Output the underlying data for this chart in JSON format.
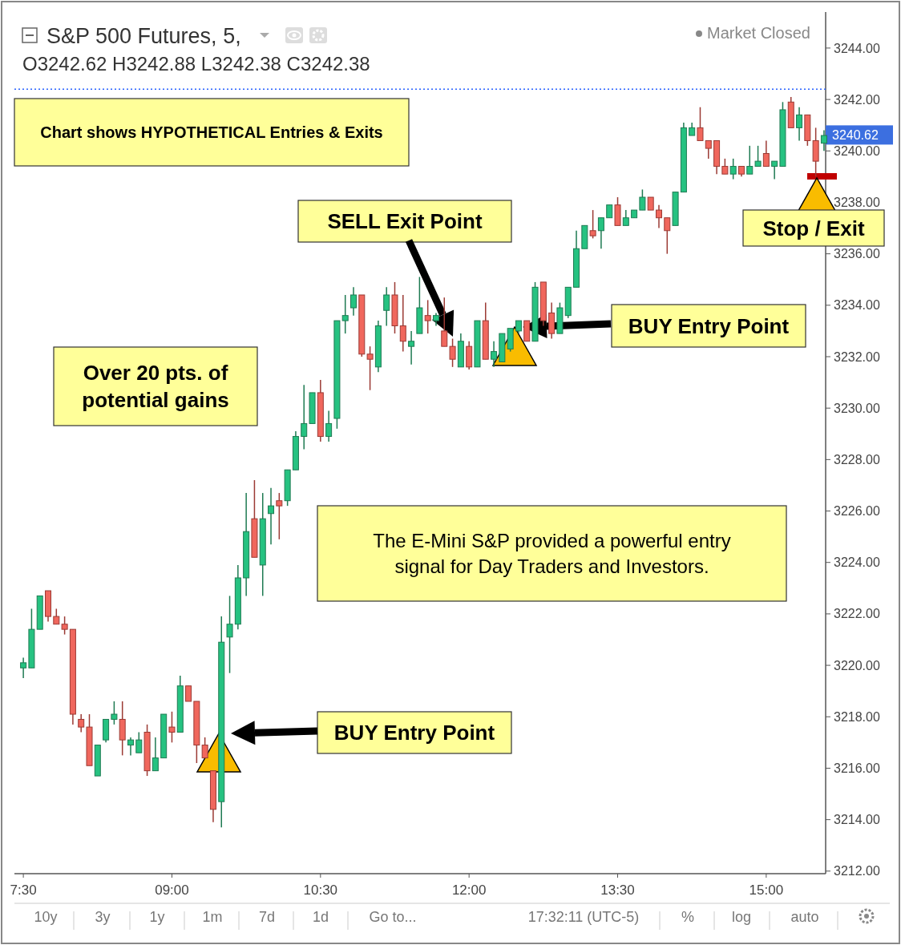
{
  "chart_data": {
    "type": "candlestick",
    "title": "S&P 500 Futures, 5,",
    "subtitle": "O3242.62 H3242.88 L3242.38 C3242.38",
    "x": [
      7.5,
      7.5833,
      7.6667,
      7.75,
      7.8333,
      7.9167,
      8,
      8.0833,
      8.1667,
      8.25,
      8.3333,
      8.4167,
      8.5,
      8.5833,
      8.6667,
      8.75,
      8.8333,
      8.9167,
      9,
      9.0833,
      9.1667,
      9.25,
      9.3333,
      9.4167,
      9.5,
      9.5833,
      9.6667,
      9.75,
      9.8333,
      9.9167,
      10,
      10.0833,
      10.1667,
      10.25,
      10.3333,
      10.4167,
      10.5,
      10.5833,
      10.6667,
      10.75,
      10.8333,
      10.9167,
      11,
      11.0833,
      11.1667,
      11.25,
      11.3333,
      11.4167,
      11.5,
      11.5833,
      11.6667,
      11.75,
      11.8333,
      11.9167,
      12,
      12.0833,
      12.1667,
      12.25,
      12.3333,
      12.4167,
      12.5,
      12.5833,
      12.6667,
      12.75,
      12.8333,
      12.9167,
      13,
      13.0833,
      13.1667,
      13.25,
      13.3333,
      13.4167,
      13.5,
      13.5833,
      13.6667,
      13.75,
      13.8333,
      13.9167,
      14,
      14.0833,
      14.1667,
      14.25,
      14.3333,
      14.4167,
      14.5,
      14.5833,
      14.6667,
      14.75,
      14.8333,
      14.9167,
      15,
      15.0833,
      15.1667,
      15.25,
      15.3333,
      15.4167,
      15.5,
      15.5833
    ],
    "ohlc": [
      [
        3219.9,
        3220.3,
        3219.5,
        3220.1
      ],
      [
        3219.9,
        3222.2,
        3219.9,
        3221.4
      ],
      [
        3221.4,
        3222.7,
        3221.4,
        3222.7
      ],
      [
        3222.9,
        3222.9,
        3221.7,
        3221.9
      ],
      [
        3221.9,
        3222.2,
        3221.6,
        3221.6
      ],
      [
        3221.6,
        3221.9,
        3221.2,
        3221.4
      ],
      [
        3221.4,
        3221.4,
        3217.7,
        3218.1
      ],
      [
        3217.9,
        3218.1,
        3217.4,
        3217.6
      ],
      [
        3217.6,
        3218.1,
        3216.1,
        3216.1
      ],
      [
        3215.7,
        3216.9,
        3215.7,
        3216.9
      ],
      [
        3217.1,
        3217.9,
        3217.0,
        3217.9
      ],
      [
        3217.9,
        3218.6,
        3217.7,
        3218.1
      ],
      [
        3217.9,
        3218.6,
        3216.5,
        3217.1
      ],
      [
        3216.9,
        3217.2,
        3216.5,
        3217.1
      ],
      [
        3216.6,
        3217.4,
        3216.6,
        3217.1
      ],
      [
        3217.4,
        3217.7,
        3215.7,
        3215.9
      ],
      [
        3215.9,
        3217.2,
        3215.9,
        3216.4
      ],
      [
        3216.4,
        3218.1,
        3216.4,
        3218.1
      ],
      [
        3217.6,
        3218.2,
        3217.0,
        3217.4
      ],
      [
        3217.4,
        3219.6,
        3217.4,
        3219.2
      ],
      [
        3219.2,
        3219.2,
        3218.6,
        3218.6
      ],
      [
        3218.6,
        3218.6,
        3216.2,
        3216.9
      ],
      [
        3216.9,
        3217.2,
        3216.4,
        3216.4
      ],
      [
        3215.9,
        3215.9,
        3213.9,
        3214.4
      ],
      [
        3214.7,
        3221.9,
        3213.7,
        3220.9
      ],
      [
        3221.1,
        3222.7,
        3219.7,
        3221.6
      ],
      [
        3221.6,
        3223.9,
        3221.4,
        3223.4
      ],
      [
        3223.4,
        3226.7,
        3222.7,
        3225.2
      ],
      [
        3225.7,
        3227.2,
        3224.2,
        3224.2
      ],
      [
        3223.9,
        3226.7,
        3222.7,
        3225.7
      ],
      [
        3225.9,
        3226.9,
        3224.7,
        3226.2
      ],
      [
        3226.4,
        3226.7,
        3224.9,
        3226.2
      ],
      [
        3226.4,
        3227.6,
        3226.2,
        3227.6
      ],
      [
        3227.6,
        3229.1,
        3227.6,
        3228.9
      ],
      [
        3228.9,
        3230.9,
        3228.4,
        3229.4
      ],
      [
        3229.4,
        3230.6,
        3229.4,
        3230.6
      ],
      [
        3230.6,
        3231.1,
        3228.7,
        3228.9
      ],
      [
        3228.9,
        3229.9,
        3228.7,
        3229.4
      ],
      [
        3229.6,
        3233.4,
        3229.2,
        3233.4
      ],
      [
        3233.4,
        3234.4,
        3232.9,
        3233.6
      ],
      [
        3233.9,
        3234.7,
        3233.6,
        3234.4
      ],
      [
        3234.4,
        3234.4,
        3232.0,
        3232.1
      ],
      [
        3232.1,
        3232.4,
        3230.7,
        3231.9
      ],
      [
        3231.6,
        3233.4,
        3231.4,
        3233.2
      ],
      [
        3233.8,
        3234.7,
        3233.2,
        3234.4
      ],
      [
        3234.4,
        3234.9,
        3232.9,
        3233.2
      ],
      [
        3233.2,
        3234.4,
        3232.2,
        3232.6
      ],
      [
        3232.4,
        3233.0,
        3231.7,
        3232.6
      ],
      [
        3232.9,
        3235.1,
        3232.9,
        3233.9
      ],
      [
        3233.6,
        3234.2,
        3232.9,
        3233.4
      ],
      [
        3233.4,
        3233.7,
        3233.2,
        3233.6
      ],
      [
        3233.0,
        3234.3,
        3232.4,
        3232.4
      ],
      [
        3232.4,
        3232.7,
        3231.6,
        3231.9
      ],
      [
        3231.6,
        3232.9,
        3231.6,
        3232.6
      ],
      [
        3232.4,
        3232.6,
        3231.5,
        3231.6
      ],
      [
        3231.6,
        3233.4,
        3231.6,
        3233.4
      ],
      [
        3233.4,
        3234.1,
        3231.9,
        3231.9
      ],
      [
        3231.9,
        3232.6,
        3231.6,
        3232.2
      ],
      [
        3231.8,
        3232.9,
        3231.8,
        3232.9
      ],
      [
        3232.3,
        3233.1,
        3232.2,
        3233.1
      ],
      [
        3233.0,
        3233.4,
        3232.9,
        3233.4
      ],
      [
        3233.4,
        3233.4,
        3232.6,
        3232.6
      ],
      [
        3232.6,
        3234.9,
        3232.6,
        3234.7
      ],
      [
        3234.9,
        3234.9,
        3233.2,
        3233.4
      ],
      [
        3233.7,
        3234.1,
        3232.7,
        3232.9
      ],
      [
        3232.9,
        3234.1,
        3232.9,
        3233.9
      ],
      [
        3233.6,
        3234.7,
        3233.5,
        3234.7
      ],
      [
        3234.7,
        3236.9,
        3234.7,
        3236.2
      ],
      [
        3236.2,
        3237.1,
        3236.2,
        3237.1
      ],
      [
        3236.9,
        3237.7,
        3236.6,
        3236.7
      ],
      [
        3236.9,
        3237.4,
        3236.2,
        3237.4
      ],
      [
        3237.4,
        3237.9,
        3237.4,
        3237.9
      ],
      [
        3237.9,
        3238.2,
        3237.1,
        3237.1
      ],
      [
        3237.1,
        3237.7,
        3237.1,
        3237.4
      ],
      [
        3237.4,
        3237.7,
        3237.4,
        3237.7
      ],
      [
        3237.7,
        3238.5,
        3237.7,
        3238.2
      ],
      [
        3238.2,
        3238.2,
        3237.7,
        3237.7
      ],
      [
        3237.7,
        3237.9,
        3237.0,
        3237.4
      ],
      [
        3237.4,
        3237.4,
        3236.0,
        3236.9
      ],
      [
        3237.1,
        3238.4,
        3237.1,
        3238.4
      ],
      [
        3238.4,
        3241.1,
        3238.4,
        3240.9
      ],
      [
        3240.6,
        3241.1,
        3240.6,
        3240.9
      ],
      [
        3240.9,
        3241.7,
        3240.4,
        3240.4
      ],
      [
        3240.4,
        3240.4,
        3239.7,
        3240.1
      ],
      [
        3240.4,
        3240.4,
        3239.1,
        3239.4
      ],
      [
        3239.4,
        3239.7,
        3239.1,
        3239.1
      ],
      [
        3239.1,
        3239.7,
        3238.9,
        3239.4
      ],
      [
        3239.4,
        3239.4,
        3239.0,
        3239.1
      ],
      [
        3239.1,
        3240.2,
        3239.1,
        3239.4
      ],
      [
        3239.4,
        3240.2,
        3239.4,
        3239.6
      ],
      [
        3239.9,
        3240.4,
        3239.4,
        3239.4
      ],
      [
        3239.4,
        3239.6,
        3238.9,
        3239.6
      ],
      [
        3239.4,
        3241.9,
        3239.4,
        3241.6
      ],
      [
        3241.9,
        3242.1,
        3240.9,
        3240.9
      ],
      [
        3240.9,
        3241.7,
        3240.4,
        3241.4
      ],
      [
        3241.4,
        3241.4,
        3240.2,
        3240.4
      ],
      [
        3240.4,
        3240.9,
        3239.0,
        3239.6
      ],
      [
        3240.3,
        3240.8,
        3240.0,
        3240.6
      ]
    ],
    "xlim": [
      7.41,
      15.6
    ],
    "xticks": [
      {
        "value": 7.5,
        "label": "7:30"
      },
      {
        "value": 9,
        "label": "09:00"
      },
      {
        "value": 10.5,
        "label": "10:30"
      },
      {
        "value": 12,
        "label": "12:00"
      },
      {
        "value": 13.5,
        "label": "13:30"
      },
      {
        "value": 15,
        "label": "15:00"
      }
    ],
    "ylim": [
      3211.9,
      3245.4
    ],
    "yticks": [
      {
        "value": 3212,
        "label": "3212.00"
      },
      {
        "value": 3214,
        "label": "3214.00"
      },
      {
        "value": 3216,
        "label": "3216.00"
      },
      {
        "value": 3218,
        "label": "3218.00"
      },
      {
        "value": 3220,
        "label": "3220.00"
      },
      {
        "value": 3222,
        "label": "3222.00"
      },
      {
        "value": 3224,
        "label": "3224.00"
      },
      {
        "value": 3226,
        "label": "3226.00"
      },
      {
        "value": 3228,
        "label": "3228.00"
      },
      {
        "value": 3230,
        "label": "3230.00"
      },
      {
        "value": 3232,
        "label": "3232.00"
      },
      {
        "value": 3234,
        "label": "3234.00"
      },
      {
        "value": 3236,
        "label": "3236.00"
      },
      {
        "value": 3238,
        "label": "3238.00"
      },
      {
        "value": 3240,
        "label": "3240.00"
      },
      {
        "value": 3242,
        "label": "3242.00"
      },
      {
        "value": 3244,
        "label": "3244.00"
      }
    ],
    "ref_lines": [
      {
        "axis": "y",
        "value": 3242.4,
        "color": "#2962ff",
        "line_style": "dotted"
      }
    ],
    "annotations": [
      "Chart shows HYPOTHETICAL Entries & Exits",
      "SELL Exit Point",
      "BUY Entry Point",
      "Stop / Exit",
      "Over 20 pts. of potential gains",
      "The E-Mini S&P provided a powerful entry signal for Day Traders and Investors.",
      "BUY Entry Point",
      "Market Closed",
      "10y",
      "3y",
      "1y",
      "1m",
      "7d",
      "1d",
      "Go to...",
      "17:32:11 (UTC-5)",
      "%",
      "log",
      "auto",
      {
        "text": "3240.62",
        "x": 15.6,
        "y": 3240.62
      }
    ],
    "grid": false
  }
}
